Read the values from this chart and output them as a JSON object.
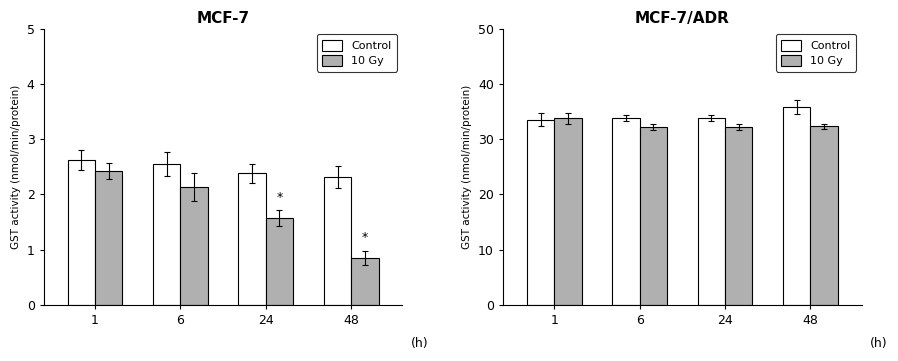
{
  "left": {
    "title": "MCF-7",
    "ylabel": "GST activity (nmol/min/protein)",
    "xlabel": "(h)",
    "categories": [
      "1",
      "6",
      "24",
      "48"
    ],
    "control_values": [
      2.62,
      2.55,
      2.38,
      2.32
    ],
    "control_errors": [
      0.18,
      0.22,
      0.17,
      0.2
    ],
    "gy10_values": [
      2.42,
      2.13,
      1.57,
      0.85
    ],
    "gy10_errors": [
      0.14,
      0.25,
      0.14,
      0.12
    ],
    "ylim": [
      0,
      5
    ],
    "yticks": [
      0,
      1,
      2,
      3,
      4,
      5
    ],
    "significant": [
      false,
      false,
      true,
      true
    ]
  },
  "right": {
    "title": "MCF-7/ADR",
    "ylabel": "GST activity (nmol/min/protein)",
    "xlabel": "(h)",
    "categories": [
      "1",
      "6",
      "24",
      "48"
    ],
    "control_values": [
      33.5,
      33.8,
      33.8,
      35.8
    ],
    "control_errors": [
      1.2,
      0.6,
      0.6,
      1.2
    ],
    "gy10_values": [
      33.8,
      32.2,
      32.2,
      32.3
    ],
    "gy10_errors": [
      1.0,
      0.5,
      0.5,
      0.4
    ],
    "ylim": [
      0,
      50
    ],
    "yticks": [
      0,
      10,
      20,
      30,
      40,
      50
    ],
    "significant": [
      false,
      false,
      false,
      false
    ]
  },
  "control_color": "#ffffff",
  "gy10_color": "#b0b0b0",
  "bar_edgecolor": "#000000",
  "legend_labels": [
    "Control",
    "10 Gy"
  ],
  "bar_width": 0.32
}
